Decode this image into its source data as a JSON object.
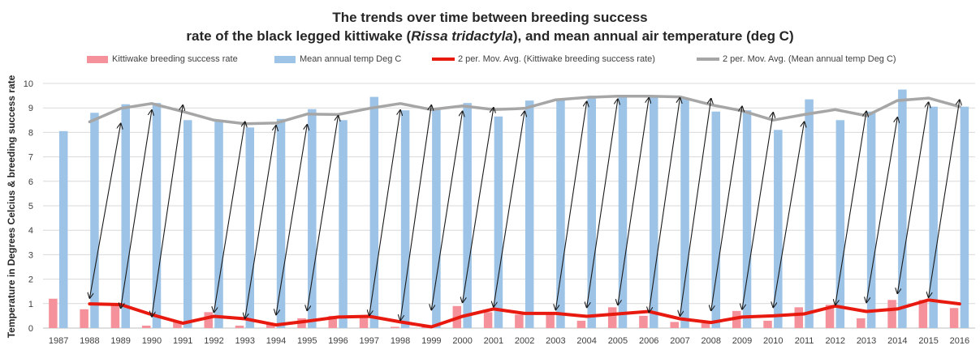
{
  "chart_data": {
    "type": "bar",
    "title_line1": "The trends over time between breeding success",
    "title_line2_pre": "rate of the black legged kittiwake (",
    "title_line2_italic": "Rissa tridactyla",
    "title_line2_post": "), and mean annual air temperature (deg C)",
    "ylabel": "Temperature in Degrees Celcius & breeding success rate",
    "ylim": [
      0,
      10
    ],
    "yticks": [
      "0",
      "1",
      "2",
      "3",
      "4",
      "5",
      "6",
      "7",
      "8",
      "9",
      "10"
    ],
    "grid": true,
    "legend_position": "top",
    "categories": [
      "1987",
      "1988",
      "1989",
      "1990",
      "1991",
      "1992",
      "1993",
      "1994",
      "1995",
      "1996",
      "1997",
      "1998",
      "1999",
      "2000",
      "2001",
      "2002",
      "2003",
      "2004",
      "2005",
      "2006",
      "2007",
      "2008",
      "2009",
      "2010",
      "2011",
      "2012",
      "2013",
      "2014",
      "2015",
      "2016"
    ],
    "series": [
      {
        "name": "Kittiwake breeding success rate",
        "kind": "bar",
        "color": "#f4919a",
        "values": [
          1.2,
          0.77,
          1.0,
          0.1,
          0.3,
          0.65,
          0.1,
          0.15,
          0.4,
          0.5,
          0.45,
          0.05,
          0.05,
          0.9,
          0.65,
          0.55,
          0.65,
          0.3,
          0.85,
          0.5,
          0.25,
          0.2,
          0.7,
          0.3,
          0.85,
          0.95,
          0.4,
          1.15,
          1.15,
          0.82
        ]
      },
      {
        "name": "Mean annual temp Deg C",
        "kind": "bar",
        "color": "#9dc3e6",
        "values": [
          8.05,
          8.8,
          9.15,
          9.2,
          8.5,
          8.5,
          8.2,
          8.55,
          8.95,
          8.5,
          9.45,
          8.9,
          8.95,
          9.2,
          8.65,
          9.3,
          9.35,
          9.5,
          9.45,
          9.5,
          9.4,
          8.85,
          8.9,
          8.1,
          9.35,
          8.5,
          8.85,
          9.75,
          9.05,
          9.05
        ]
      },
      {
        "name": "2 per. Mov. Avg. (Kittiwake breeding success rate)",
        "kind": "line",
        "color": "#e8190e",
        "values": [
          null,
          0.99,
          0.96,
          0.55,
          0.2,
          0.48,
          0.38,
          0.13,
          0.28,
          0.45,
          0.48,
          0.25,
          0.05,
          0.48,
          0.78,
          0.6,
          0.6,
          0.48,
          0.58,
          0.68,
          0.38,
          0.23,
          0.45,
          0.5,
          0.58,
          0.9,
          0.68,
          0.78,
          1.15,
          0.99
        ]
      },
      {
        "name": "2 per. Mov. Avg. (Mean annual temp Deg C)",
        "kind": "line",
        "color": "#a6a6a6",
        "values": [
          null,
          8.43,
          8.98,
          9.18,
          8.85,
          8.5,
          8.35,
          8.38,
          8.75,
          8.73,
          8.98,
          9.18,
          8.93,
          9.08,
          8.93,
          8.98,
          9.33,
          9.43,
          9.48,
          9.48,
          9.45,
          9.13,
          8.88,
          8.5,
          8.73,
          8.93,
          8.68,
          9.3,
          9.4,
          9.05
        ]
      }
    ],
    "arrows": [
      {
        "from": 1,
        "to": 2
      },
      {
        "from": 2,
        "to": 3
      },
      {
        "from": 3,
        "to": 4
      },
      {
        "from": 5,
        "to": 6
      },
      {
        "from": 6,
        "to": 7
      },
      {
        "from": 7,
        "to": 8
      },
      {
        "from": 8,
        "to": 9
      },
      {
        "from": 10,
        "to": 11
      },
      {
        "from": 11,
        "to": 12
      },
      {
        "from": 12,
        "to": 13
      },
      {
        "from": 13,
        "to": 14
      },
      {
        "from": 14,
        "to": 15
      },
      {
        "from": 16,
        "to": 17
      },
      {
        "from": 17,
        "to": 18
      },
      {
        "from": 18,
        "to": 19
      },
      {
        "from": 19,
        "to": 20
      },
      {
        "from": 20,
        "to": 21
      },
      {
        "from": 21,
        "to": 22
      },
      {
        "from": 22,
        "to": 23
      },
      {
        "from": 23,
        "to": 24
      },
      {
        "from": 25,
        "to": 26
      },
      {
        "from": 26,
        "to": 27
      },
      {
        "from": 27,
        "to": 28
      },
      {
        "from": 28,
        "to": 29
      }
    ]
  }
}
